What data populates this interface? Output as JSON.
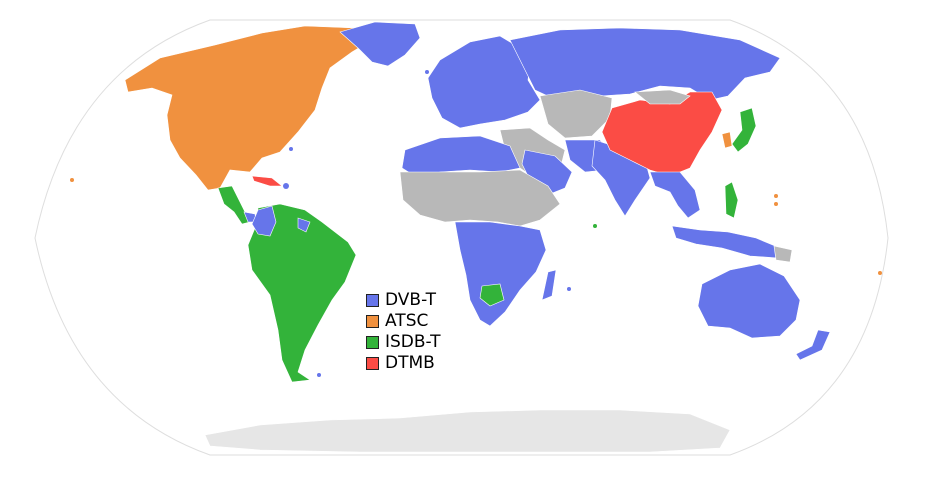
{
  "legend": {
    "items": [
      {
        "label": "DVB-T",
        "color": "#6675ea"
      },
      {
        "label": "ATSC",
        "color": "#f0913f"
      },
      {
        "label": "ISDB-T",
        "color": "#33b33a"
      },
      {
        "label": "DTMB",
        "color": "#fb4c45"
      }
    ]
  },
  "colors": {
    "no_data": "#b8b8b8",
    "antarctica": "#e6e6e6",
    "ocean_outline": "#d8d8d8"
  }
}
